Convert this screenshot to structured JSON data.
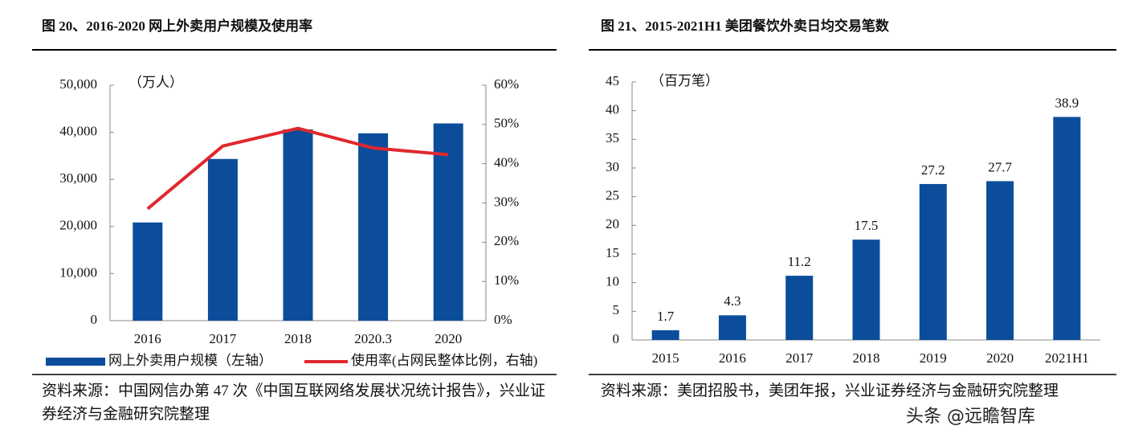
{
  "chart_data": [
    {
      "type": "bar",
      "title": "图 20、2016-2020 网上外卖用户规模及使用率",
      "unit_label": "（万人）",
      "categories": [
        "2016",
        "2017",
        "2018",
        "2020.3",
        "2020"
      ],
      "series": [
        {
          "name": "网上外卖用户规模（左轴）",
          "type": "bar",
          "color": "#0b4d9b",
          "values": [
            20856,
            34338,
            40601,
            39780,
            41883
          ]
        },
        {
          "name": "使用率(占网民整体比例，右轴)",
          "type": "line",
          "axis": "y2",
          "color": "#e0282e",
          "values": [
            28.5,
            44.5,
            49.0,
            44.0,
            42.3
          ]
        }
      ],
      "ylim": [
        0,
        50000
      ],
      "yticks": [
        0,
        {
          "value": 10000,
          "label": "10,000"
        },
        {
          "value": 20000,
          "label": "20,000"
        },
        {
          "value": 30000,
          "label": "30,000"
        },
        {
          "value": 40000,
          "label": "40,000"
        },
        {
          "value": 50000,
          "label": "50,000"
        }
      ],
      "y2lim": [
        0,
        60
      ],
      "y2ticks": [
        {
          "value": 0,
          "label": "0%"
        },
        {
          "value": 10,
          "label": "10%"
        },
        {
          "value": 20,
          "label": "20%"
        },
        {
          "value": 30,
          "label": "30%"
        },
        {
          "value": 40,
          "label": "40%"
        },
        {
          "value": 50,
          "label": "50%"
        },
        {
          "value": 60,
          "label": "60%"
        }
      ],
      "legend": "bottom",
      "source": "资料来源：中国网信办第 47 次《中国互联网络发展状况统计报告》，兴业证券经济与金融研究院整理"
    },
    {
      "type": "bar",
      "title": "图 21、2015-2021H1 美团餐饮外卖日均交易笔数",
      "unit_label": "（百万笔）",
      "categories": [
        "2015",
        "2016",
        "2017",
        "2018",
        "2019",
        "2020",
        "2021H1"
      ],
      "values": [
        1.7,
        4.3,
        11.2,
        17.5,
        27.2,
        27.7,
        38.9
      ],
      "color": "#0b4d9b",
      "ylim": [
        0,
        45
      ],
      "yticks": [
        0,
        5,
        10,
        15,
        20,
        25,
        30,
        35,
        40,
        45
      ],
      "data_labels": true,
      "source": "资料来源：美团招股书，美团年报，兴业证券经济与金融研究院整理"
    }
  ],
  "watermark": "头条 @远瞻智库"
}
